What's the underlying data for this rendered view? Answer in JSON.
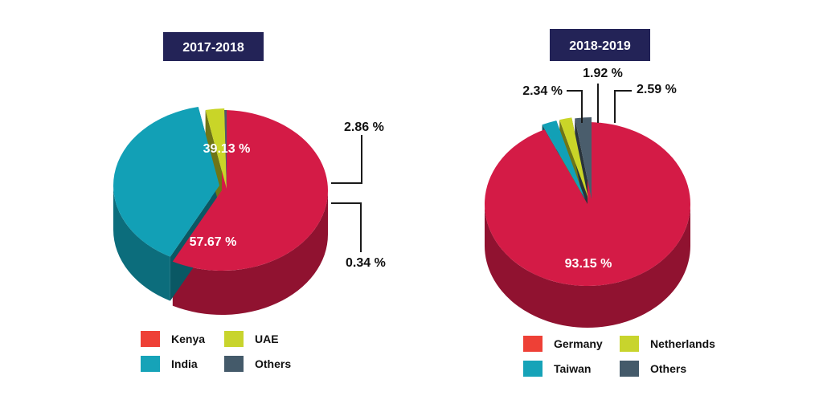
{
  "chart_data": [
    {
      "type": "pie",
      "title": "2017-2018",
      "series": [
        {
          "name": "Kenya",
          "value": 57.67,
          "label": "57.67 %"
        },
        {
          "name": "India",
          "value": 39.13,
          "label": "39.13 %"
        },
        {
          "name": "UAE",
          "value": 2.86,
          "label": "2.86 %"
        },
        {
          "name": "Others",
          "value": 0.34,
          "label": "0.34 %"
        }
      ],
      "legend": {
        "placement": "bottom",
        "items": [
          {
            "name": "Kenya",
            "color": "#ee4036"
          },
          {
            "name": "UAE",
            "color": "#c8d42d"
          },
          {
            "name": "India",
            "color": "#16a3b8"
          },
          {
            "name": "Others",
            "color": "#445a6a"
          }
        ]
      },
      "slice_colors": {
        "Kenya": "#d41b46",
        "India": "#12a0b6",
        "UAE": "#c9d528",
        "Others": "#4a5d6c"
      }
    },
    {
      "type": "pie",
      "title": "2018-2019",
      "series": [
        {
          "name": "Germany",
          "value": 93.15,
          "label": "93.15 %"
        },
        {
          "name": "Taiwan",
          "value": 2.34,
          "label": "2.34 %"
        },
        {
          "name": "Netherlands",
          "value": 1.92,
          "label": "1.92 %"
        },
        {
          "name": "Others",
          "value": 2.59,
          "label": "2.59 %"
        }
      ],
      "legend": {
        "placement": "bottom",
        "items": [
          {
            "name": "Germany",
            "color": "#ee4036"
          },
          {
            "name": "Netherlands",
            "color": "#c8d42d"
          },
          {
            "name": "Taiwan",
            "color": "#16a3b8"
          },
          {
            "name": "Others",
            "color": "#445a6a"
          }
        ]
      },
      "slice_colors": {
        "Germany": "#d41b46",
        "Taiwan": "#12a0b6",
        "Netherlands": "#c9d528",
        "Others": "#4a5d6c"
      }
    }
  ],
  "colors": {
    "title_bg": "#232357",
    "label_dark": "#111111",
    "label_light": "#ffffff",
    "leader": "#1a1a1a"
  }
}
